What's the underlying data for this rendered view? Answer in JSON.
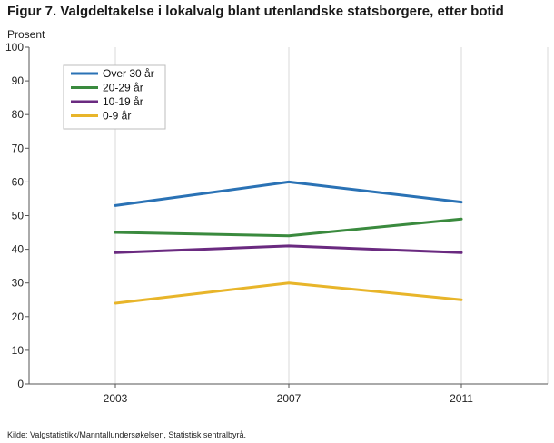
{
  "title": "Figur 7. Valgdeltakelse i lokalvalg blant utenlandske statsborgere, etter botid",
  "source": "Kilde: Valgstatistikk/Manntallundersøkelsen, Statistisk sentralbyrå.",
  "chart_data": {
    "type": "line",
    "title": "Figur 7. Valgdeltakelse i lokalvalg blant utenlandske statsborgere, etter botid",
    "xlabel": "",
    "ylabel": "Prosent",
    "categories": [
      "2003",
      "2007",
      "2011"
    ],
    "ylim": [
      0,
      100
    ],
    "yticks": [
      0,
      10,
      20,
      30,
      40,
      50,
      60,
      70,
      80,
      90,
      100
    ],
    "grid": "vertical",
    "legend_position": "top-left",
    "series": [
      {
        "name": "Over 30 år",
        "color": "#2a72b5",
        "values": [
          53,
          60,
          54
        ]
      },
      {
        "name": "20-29 år",
        "color": "#3a8a3e",
        "values": [
          45,
          44,
          49
        ]
      },
      {
        "name": "10-19 år",
        "color": "#6a2a80",
        "values": [
          39,
          41,
          39
        ]
      },
      {
        "name": "0-9 år",
        "color": "#e8b52a",
        "values": [
          24,
          30,
          25
        ]
      }
    ]
  }
}
